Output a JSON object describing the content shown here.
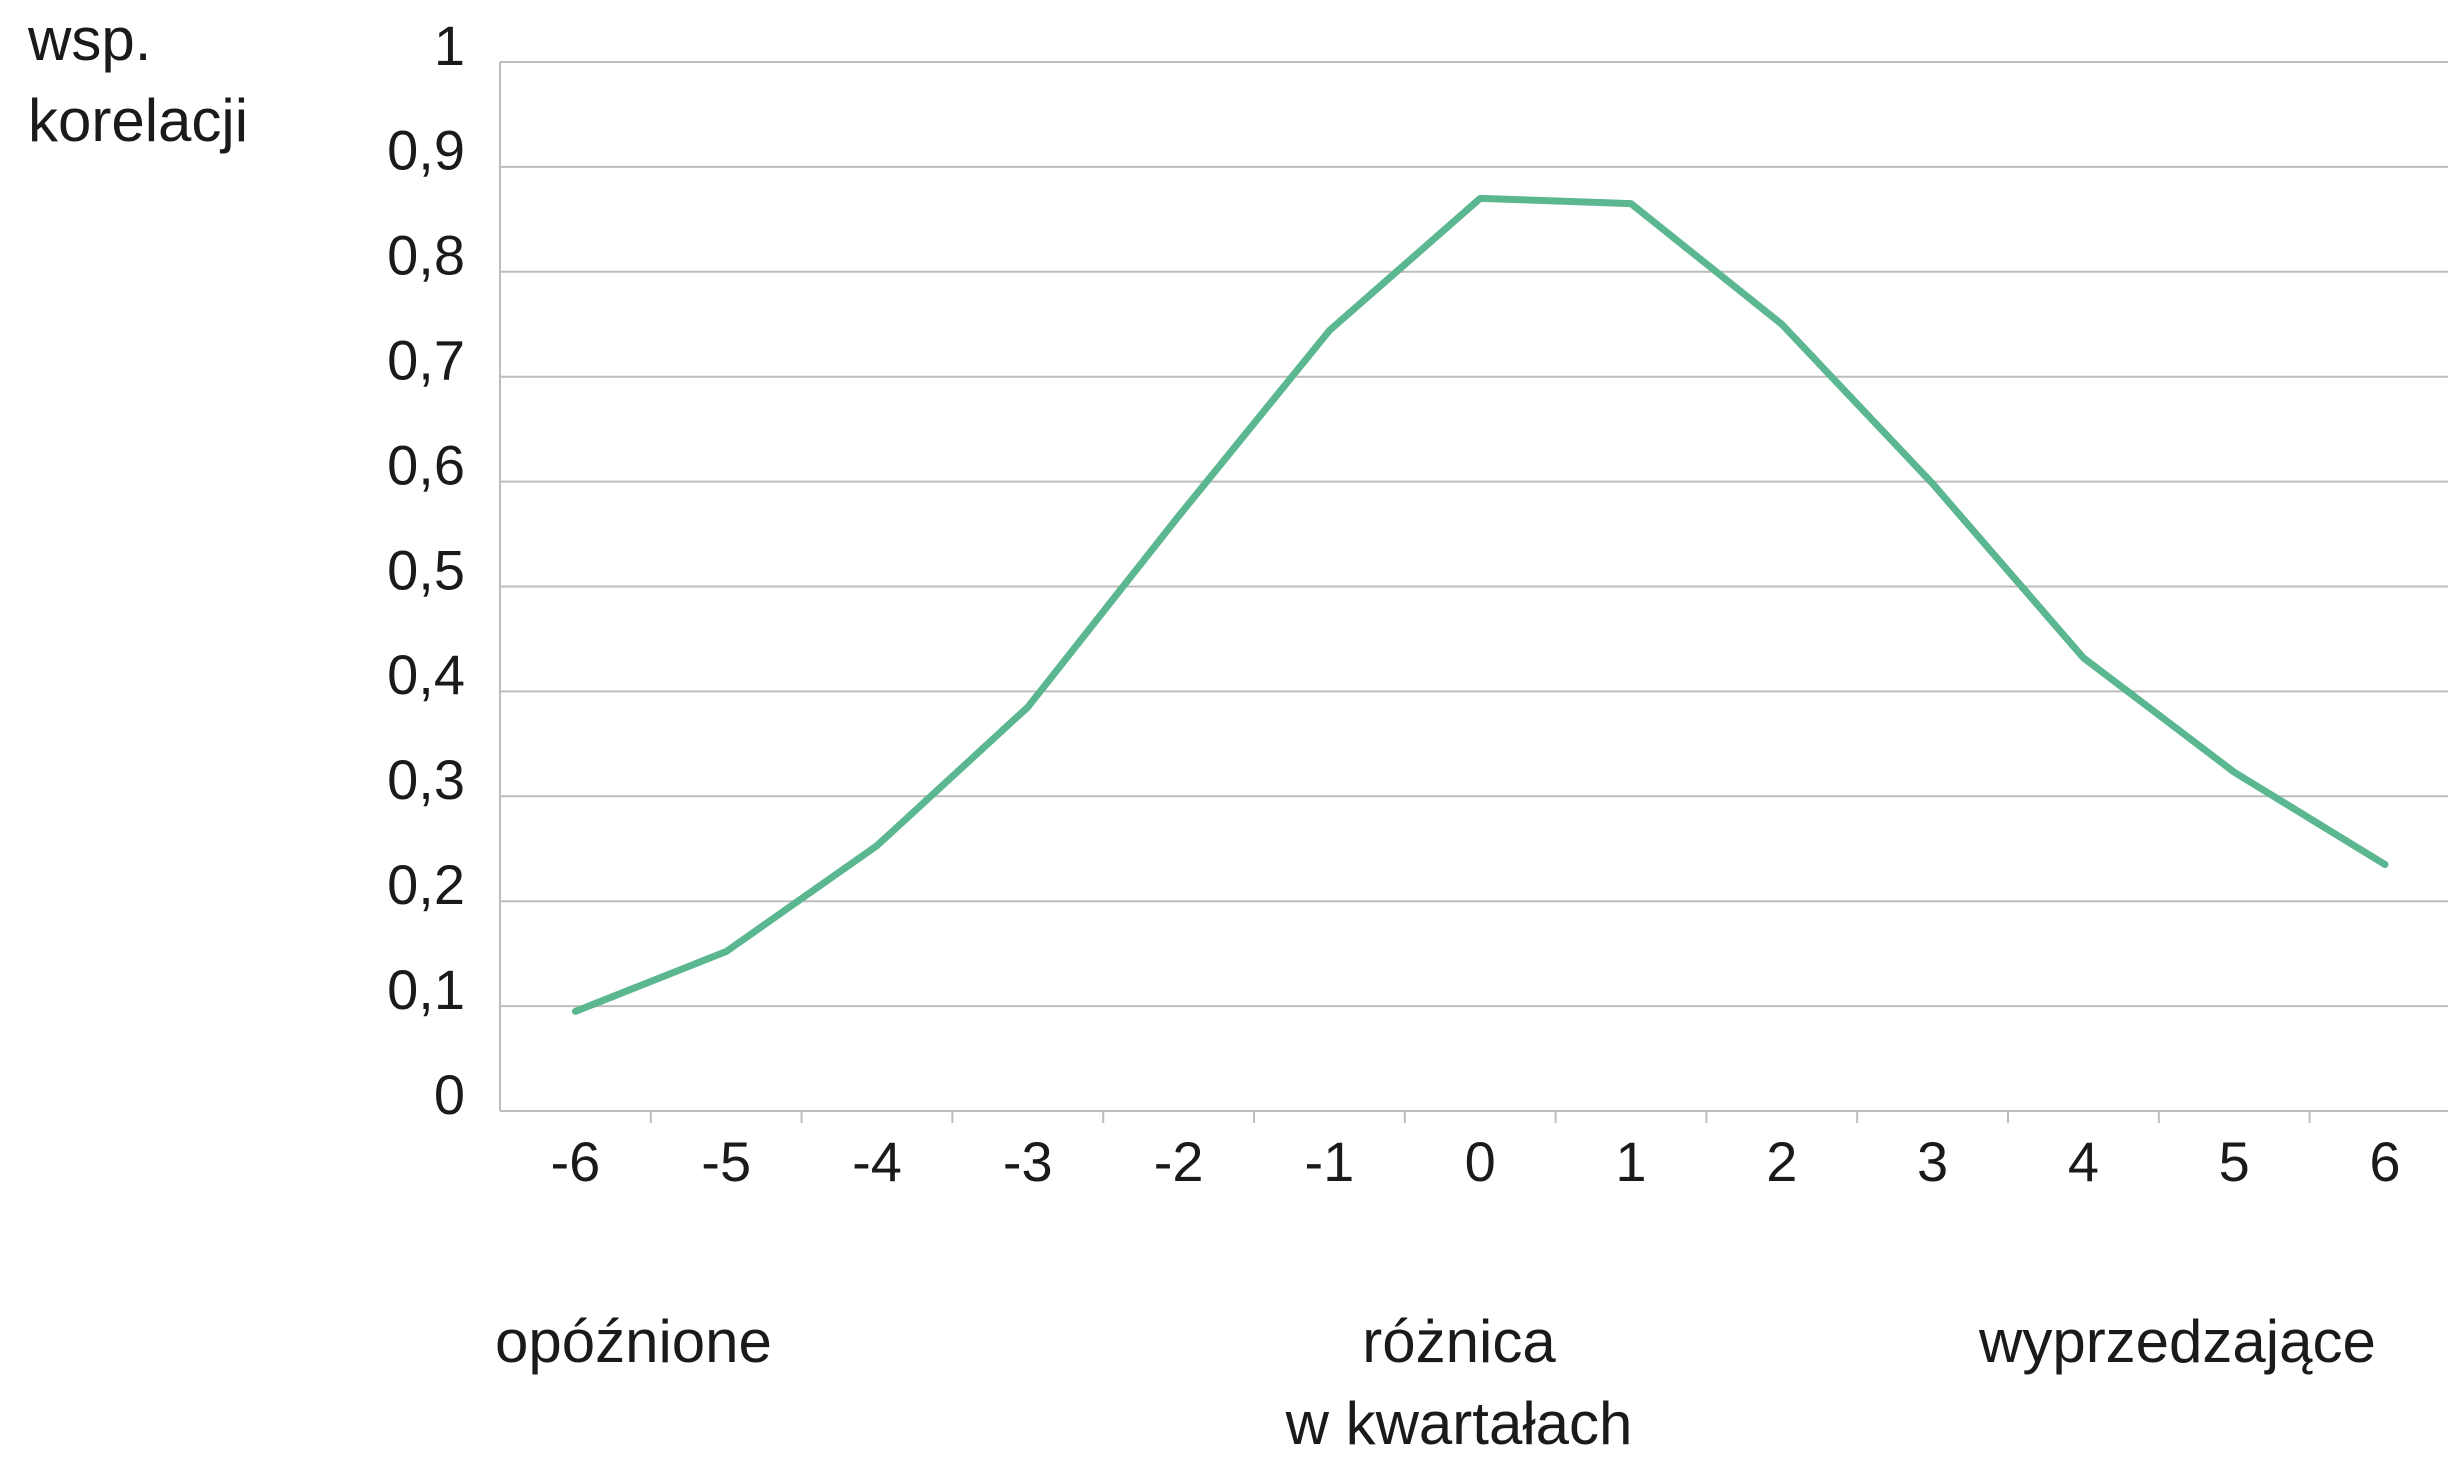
{
  "chart_data": {
    "type": "line",
    "ylabel": [
      "wsp.",
      "korelacji"
    ],
    "xlabel": [
      "różnica",
      "w kwartałach"
    ],
    "annotations": [
      "opóźnione",
      "wyprzedzające"
    ],
    "categories": [
      "-6",
      "-5",
      "-4",
      "-3",
      "-2",
      "-1",
      "0",
      "1",
      "2",
      "3",
      "4",
      "5",
      "6"
    ],
    "series": [
      {
        "color": "#5ab78f",
        "values": [
          0.095,
          0.152,
          0.253,
          0.385,
          0.567,
          0.744,
          0.87,
          0.865,
          0.75,
          0.598,
          0.432,
          0.323,
          0.235
        ]
      }
    ],
    "ylim": [
      0,
      1
    ],
    "yticks": [
      0,
      {
        "value": 0.1,
        "label": "0,1"
      },
      {
        "value": 0.2,
        "label": "0,2"
      },
      {
        "value": 0.3,
        "label": "0,3"
      },
      {
        "value": 0.4,
        "label": "0,4"
      },
      {
        "value": 0.5,
        "label": "0,5"
      },
      {
        "value": 0.6,
        "label": "0,6"
      },
      {
        "value": 0.7,
        "label": "0,7"
      },
      {
        "value": 0.8,
        "label": "0,8"
      },
      {
        "value": 0.9,
        "label": "0,9"
      },
      1
    ],
    "grid": true
  }
}
